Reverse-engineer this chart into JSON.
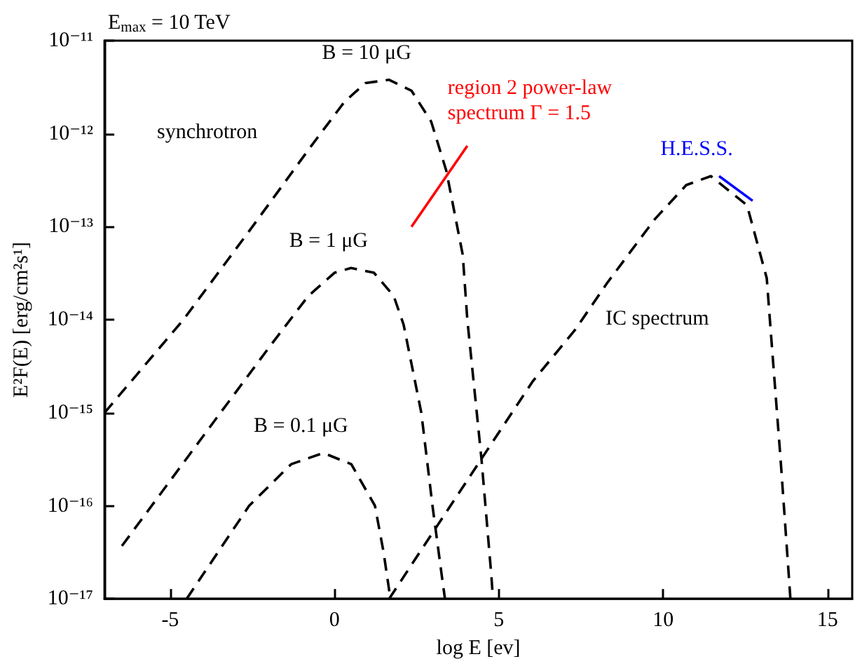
{
  "chart_data": {
    "type": "line",
    "title": "E$_{max}$ = 10 TeV",
    "xlabel": "log E [ev]",
    "ylabel": "E²F(E) [erg/cm²s¹]",
    "xlim": [
      -7,
      15.75
    ],
    "xticks": [
      -5,
      0,
      5,
      10,
      15
    ],
    "ylim": [
      1e-17,
      1e-11
    ],
    "log": "y",
    "yticks": [
      {
        "value": 1e-17,
        "label": "10⁻¹⁷"
      },
      {
        "value": 1e-16,
        "label": "10⁻¹⁶"
      },
      {
        "value": 1e-15,
        "label": "10⁻¹⁵"
      },
      {
        "value": 1e-14,
        "label": "10⁻¹⁴"
      },
      {
        "value": 1e-13,
        "label": "10⁻¹³"
      },
      {
        "value": 1e-12,
        "label": "10⁻¹²"
      },
      {
        "value": 1e-11,
        "label": "10⁻¹¹"
      }
    ],
    "grid": false,
    "marker": "none",
    "line_style": "dashed",
    "series": [
      {
        "name": "B = 10 μG",
        "color": "#000000",
        "x": [
          -7,
          -4.6,
          -2.5,
          -0.77,
          0.3,
          0.94,
          1.66,
          2.34,
          2.94,
          3.4,
          3.9,
          4.04,
          4.47,
          4.77,
          4.82
        ],
        "values": [
          1e-15,
          1e-14,
          1e-13,
          6.9e-13,
          2.2e-12,
          3.5e-12,
          3.8e-12,
          2.9e-12,
          1.35e-12,
          4e-13,
          5e-14,
          1e-14,
          3.2e-16,
          1.8e-17,
          1e-17
        ]
      },
      {
        "name": "B = 1 μG",
        "color": "#000000",
        "x": [
          -6.47,
          -4,
          -2,
          -0.8,
          0,
          0.5,
          1.2,
          1.8,
          2.1,
          2.64,
          2.98,
          3.28,
          3.36
        ],
        "values": [
          3.7e-17,
          5.6e-16,
          5e-15,
          1.8e-14,
          3.2e-14,
          3.6e-14,
          3.2e-14,
          1.8e-14,
          8.9e-15,
          1e-15,
          1e-16,
          1.6e-17,
          1e-17
        ]
      },
      {
        "name": "B = 0.1 μG",
        "color": "#000000",
        "x": [
          -4.5,
          -2.6,
          -1.32,
          -0.34,
          0.51,
          1.23,
          1.49,
          1.7
        ],
        "values": [
          1e-17,
          1e-16,
          2.8e-16,
          3.7e-16,
          2.8e-16,
          1e-16,
          3.2e-17,
          1e-17
        ]
      },
      {
        "color": "#000000",
        "x": [
          1.66,
          3.15,
          4.47,
          6.04,
          7.32,
          8.3,
          9.74,
          10.7,
          11.45,
          12.55,
          13.15,
          13.28,
          13.57,
          13.83,
          13.87
        ],
        "values": [
          1e-17,
          6.3e-17,
          3.2e-16,
          2.2e-15,
          7.8e-15,
          2.5e-14,
          1.2e-13,
          2.8e-13,
          3.5e-13,
          1.7e-13,
          2.8e-14,
          6.9e-15,
          3.2e-16,
          1.6e-17,
          1e-17
        ]
      },
      {
        "name": "region 2 power-law spectrum Γ = 1.5",
        "color": "#ff0000",
        "line_style": "solid",
        "x": [
          2.34,
          4.04
        ],
        "values": [
          1e-13,
          7.4e-13
        ]
      },
      {
        "name": "H.E.S.S.",
        "color": "#0000ff",
        "line_style": "solid",
        "x": [
          11.7,
          12.72
        ],
        "values": [
          3.5e-13,
          1.9e-13
        ]
      }
    ],
    "annotations": [
      "synchrotron",
      "IC spectrum"
    ]
  }
}
